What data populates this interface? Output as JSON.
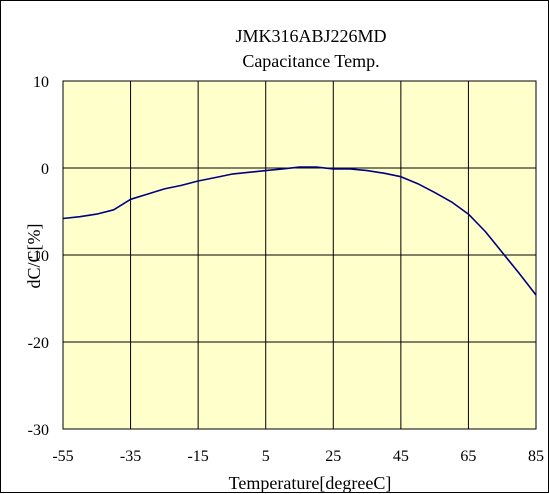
{
  "chart_data": {
    "type": "line",
    "title": "JMK316ABJ226MD",
    "subtitle": "Capacitance Temp.",
    "xlabel": "Temperature[degreeC]",
    "ylabel": "dC/C[%]",
    "xlim": [
      -55,
      85
    ],
    "ylim": [
      -30,
      10
    ],
    "xticks": [
      -55,
      -35,
      -15,
      5,
      25,
      45,
      65,
      85
    ],
    "yticks": [
      10,
      0,
      -10,
      -20,
      -30
    ],
    "xtick_labels": [
      "-55",
      "-35",
      "-15",
      "5",
      "25",
      "45",
      "65",
      "85"
    ],
    "ytick_labels": [
      "10",
      "0",
      "-10",
      "-20",
      "-30"
    ],
    "grid": true,
    "legend": "none",
    "colors": {
      "plot_background": "#ffffcc",
      "line": "#000080",
      "grid": "#000000"
    },
    "series": [
      {
        "x": [
          -55,
          -50,
          -45,
          -40,
          -35,
          -30,
          -25,
          -20,
          -15,
          -10,
          -5,
          0,
          5,
          10,
          15,
          20,
          25,
          30,
          35,
          40,
          45,
          50,
          55,
          60,
          65,
          70,
          75,
          80,
          85
        ],
        "y": [
          -5.8,
          -5.6,
          -5.3,
          -4.8,
          -3.6,
          -3.0,
          -2.4,
          -2.0,
          -1.5,
          -1.1,
          -0.7,
          -0.5,
          -0.3,
          -0.1,
          0.1,
          0.1,
          -0.1,
          -0.1,
          -0.3,
          -0.6,
          -1.0,
          -1.8,
          -2.8,
          -3.9,
          -5.3,
          -7.3,
          -9.7,
          -12.1,
          -14.6
        ]
      }
    ]
  }
}
